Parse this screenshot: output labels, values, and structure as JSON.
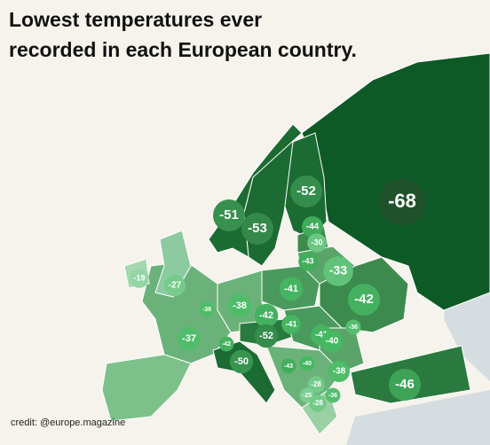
{
  "header": {
    "title_line1": "Lowest temperatures ever",
    "title_line2": "recorded in each European country."
  },
  "credit": "credit: @europe.magazine",
  "regions": [
    {
      "value": -68
    },
    {
      "value": -52
    },
    {
      "value": -53
    },
    {
      "value": -51
    },
    {
      "value": -44
    },
    {
      "value": -30
    },
    {
      "value": -43
    },
    {
      "value": -33
    },
    {
      "value": -41
    },
    {
      "value": -42
    },
    {
      "value": -19
    },
    {
      "value": -27
    },
    {
      "value": -38
    },
    {
      "value": -38
    },
    {
      "value": -42
    },
    {
      "value": -41
    },
    {
      "value": -41
    },
    {
      "value": -36
    },
    {
      "value": -40
    },
    {
      "value": -37
    },
    {
      "value": -42
    },
    {
      "value": -52
    },
    {
      "value": -50
    },
    {
      "value": -43
    },
    {
      "value": -40
    },
    {
      "value": -38
    },
    {
      "value": -36
    },
    {
      "value": -46
    },
    {
      "value": -28
    },
    {
      "value": -25
    },
    {
      "value": -28
    }
  ]
}
